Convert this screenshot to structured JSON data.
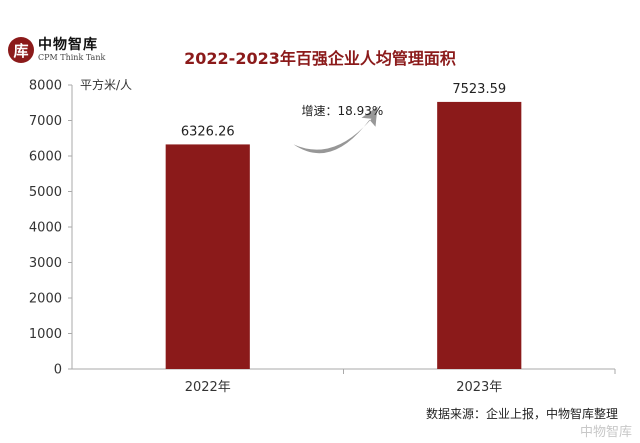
{
  "logo": {
    "cn_text": "中物智库",
    "en_text": "CPM Think Tank"
  },
  "chart_data": {
    "type": "bar",
    "title": "2022-2023年百强企业人均管理面积",
    "ylabel": "平方米/人",
    "xlabel": "",
    "categories": [
      "2022年",
      "2023年"
    ],
    "values": [
      6326.26,
      7523.59
    ],
    "value_labels": [
      "6326.26",
      "7523.59"
    ],
    "ylim": [
      0,
      8000
    ],
    "yticks": [
      0,
      1000,
      2000,
      3000,
      4000,
      5000,
      6000,
      7000,
      8000
    ],
    "grid": false,
    "bar_color": "#8b1a1a",
    "annotation": "增速：18.93%"
  },
  "source": "数据来源：企业上报，中物智库整理",
  "watermark": "中物智库"
}
